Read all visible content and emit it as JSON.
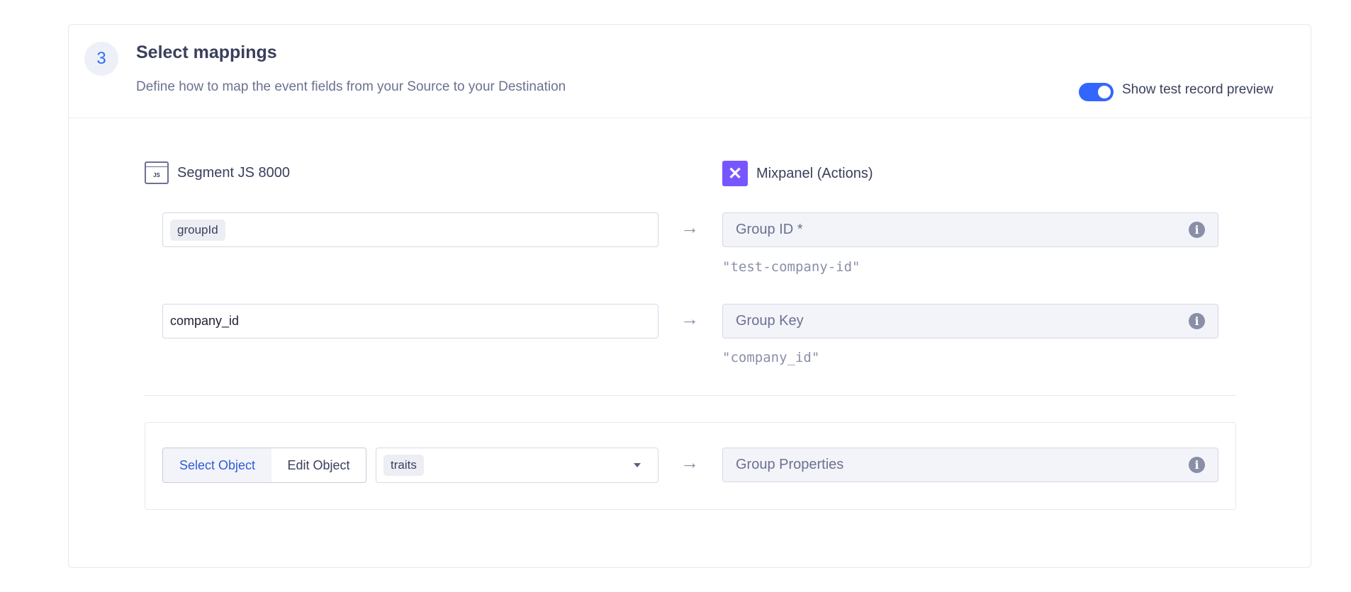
{
  "step": {
    "number": "3",
    "title": "Select mappings",
    "subtitle": "Define how to map the event fields from your Source to your Destination"
  },
  "toggle": {
    "label": "Show test record preview",
    "on": true,
    "color": "#3366ff"
  },
  "source": {
    "name": "Segment JS 8000",
    "icon": "js-browser-icon",
    "icon_text": "JS"
  },
  "destination": {
    "name": "Mixpanel (Actions)",
    "icon": "mixpanel-logo",
    "brand_color": "#7856ff"
  },
  "mappings": [
    {
      "source_pill": "groupId",
      "dest_label": "Group ID *",
      "preview": "\"test-company-id\""
    },
    {
      "source_value": "company_id",
      "dest_label": "Group Key",
      "preview": "\"company_id\""
    }
  ],
  "object_mapping": {
    "select_label": "Select Object",
    "edit_label": "Edit Object",
    "selected_value": "traits",
    "dest_label": "Group Properties"
  }
}
